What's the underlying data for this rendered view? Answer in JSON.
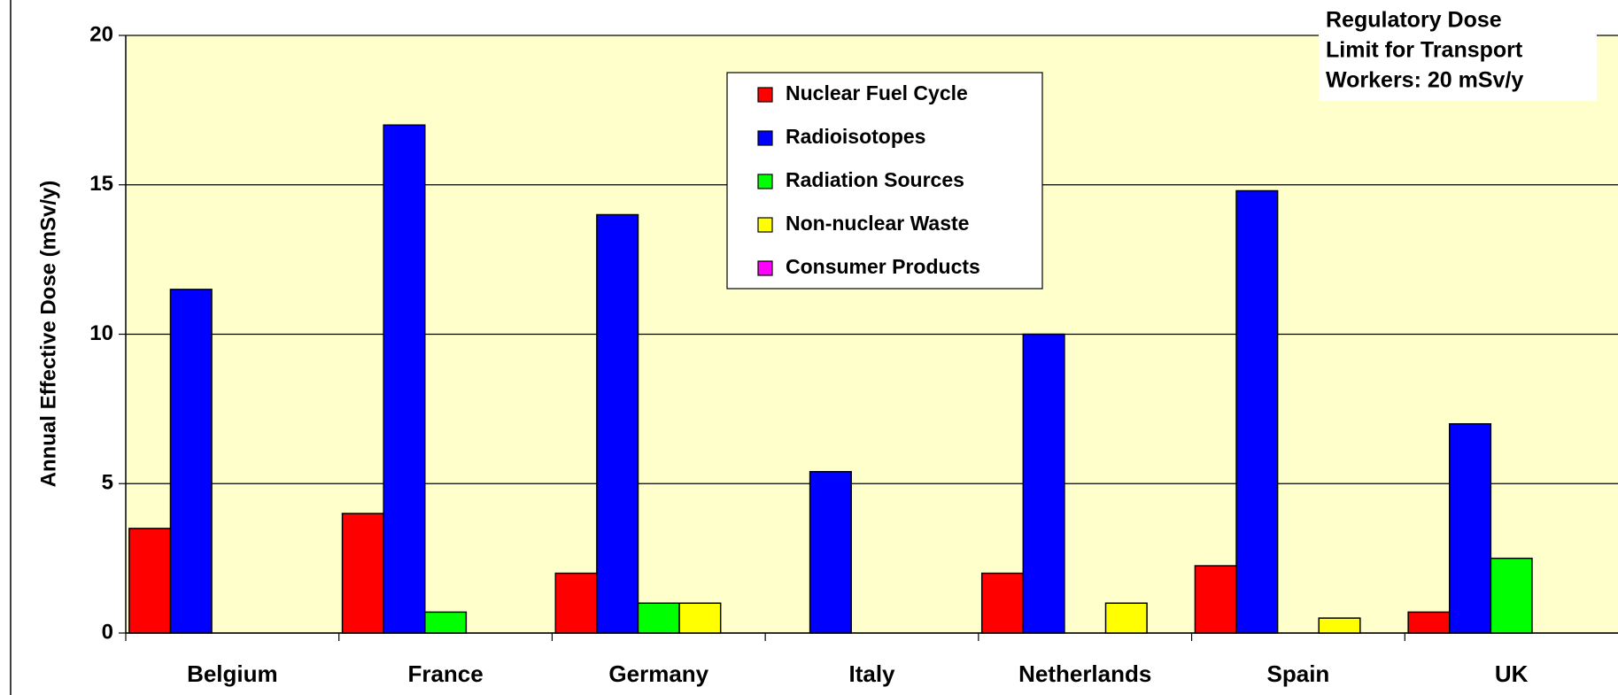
{
  "chart_data": {
    "type": "bar",
    "y_label": "Annual Effective Dose (mSv/y)",
    "annotation": [
      "Regulatory Dose",
      "Limit for Transport",
      "Workers: 20 mSv/y"
    ],
    "categories": [
      "Belgium",
      "France",
      "Germany",
      "Italy",
      "Netherlands",
      "Spain",
      "UK"
    ],
    "series": [
      {
        "name": "Nuclear Fuel Cycle",
        "color": "#ff0000",
        "values": [
          3.5,
          4,
          2,
          0,
          2,
          2.25,
          0.7
        ]
      },
      {
        "name": "Radioisotopes",
        "color": "#0000ff",
        "values": [
          11.5,
          17,
          14,
          5.4,
          10,
          14.8,
          7
        ]
      },
      {
        "name": "Radiation Sources",
        "color": "#00ff00",
        "values": [
          0,
          0.7,
          1,
          0,
          0,
          0,
          2.5
        ]
      },
      {
        "name": "Non-nuclear Waste",
        "color": "#ffff00",
        "values": [
          0,
          0,
          1,
          0,
          1,
          0.5,
          0
        ]
      },
      {
        "name": "Consumer Products",
        "color": "#ff00ff",
        "values": [
          0,
          0,
          0,
          0,
          0,
          0,
          0
        ]
      }
    ],
    "ylim": [
      0,
      20
    ],
    "yticks": [
      0,
      5,
      10,
      15,
      20
    ],
    "grid": true,
    "legend": "top-center",
    "plot_background": "#ffffcc"
  }
}
